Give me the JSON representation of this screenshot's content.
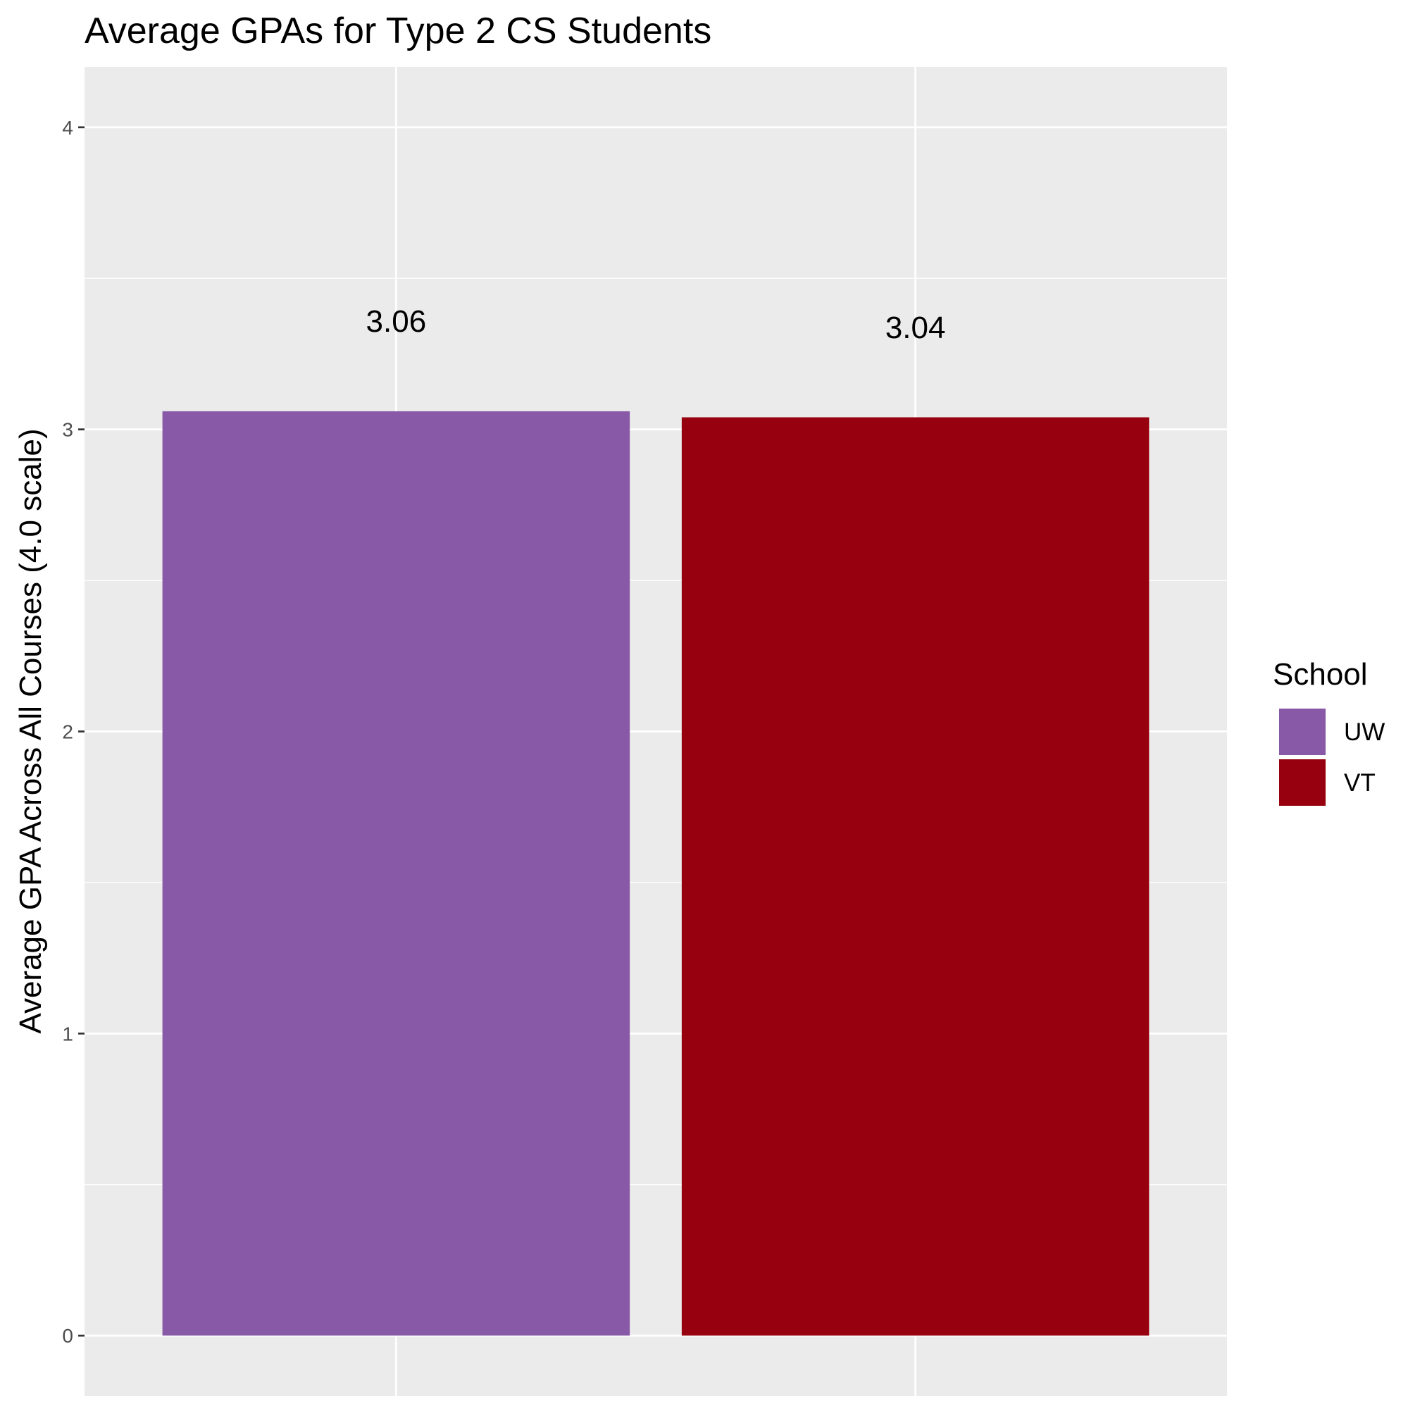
{
  "chart_data": {
    "type": "bar",
    "title": "Average GPAs for Type 2 CS Students",
    "xlabel": "",
    "ylabel": "Average GPA Across All Courses (4.0 scale)",
    "categories": [
      "UW",
      "VT"
    ],
    "values": [
      3.06,
      3.04
    ],
    "value_labels": [
      "3.06",
      "3.04"
    ],
    "colors": [
      "#8759A7",
      "#97000F"
    ],
    "ylim": [
      -0.2,
      4.2
    ],
    "yticks": [
      0,
      1,
      2,
      3,
      4
    ],
    "ytick_labels": [
      "0",
      "1",
      "2",
      "3",
      "4"
    ],
    "grid": true,
    "panel_background": "#EBEBEB",
    "legend": {
      "title": "School",
      "position": "right",
      "entries": [
        "UW",
        "VT"
      ]
    }
  }
}
